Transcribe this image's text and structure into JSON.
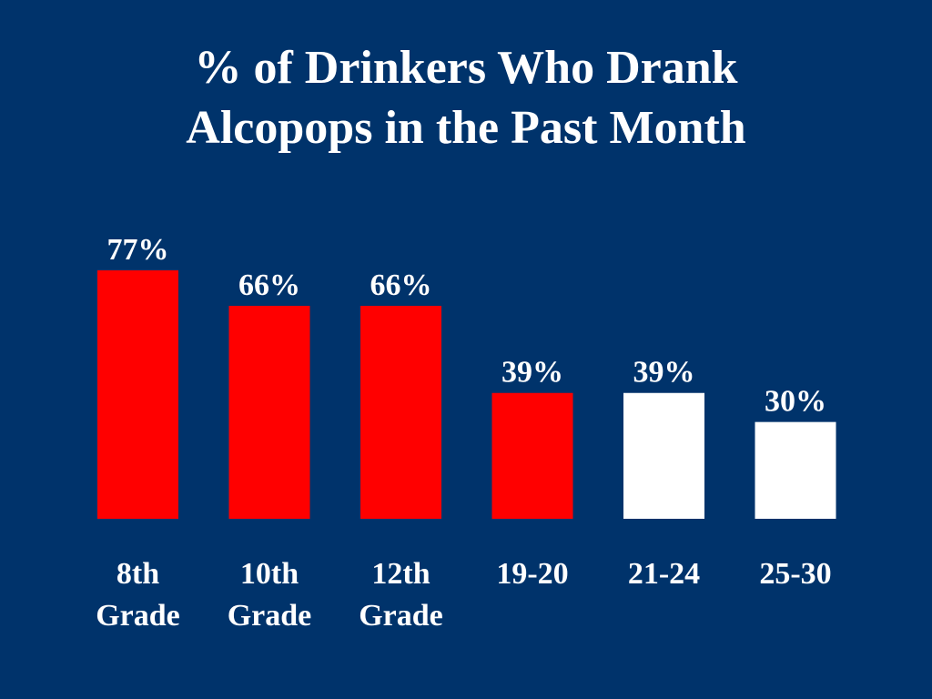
{
  "slide": {
    "background_color": "#00336b"
  },
  "title": {
    "line1": "% of Drinkers Who Drank",
    "line2": "Alcopops in the Past Month"
  },
  "chart_data": {
    "type": "bar",
    "title": "% of Drinkers Who Drank Alcopops in the Past Month",
    "categories": [
      [
        "8th",
        "Grade"
      ],
      [
        "10th",
        "Grade"
      ],
      [
        "12th",
        "Grade"
      ],
      [
        "19-20"
      ],
      [
        "21-24"
      ],
      [
        "25-30"
      ]
    ],
    "values": [
      77,
      66,
      66,
      39,
      39,
      30
    ],
    "data_labels": [
      "77%",
      "66%",
      "66%",
      "39%",
      "39%",
      "30%"
    ],
    "bar_colors": [
      "#ff0000",
      "#ff0000",
      "#ff0000",
      "#ff0000",
      "#ffffff",
      "#ffffff"
    ],
    "xlabel": "",
    "ylabel": "",
    "ylim": [
      0,
      100
    ],
    "grid": false,
    "legend": "none"
  }
}
